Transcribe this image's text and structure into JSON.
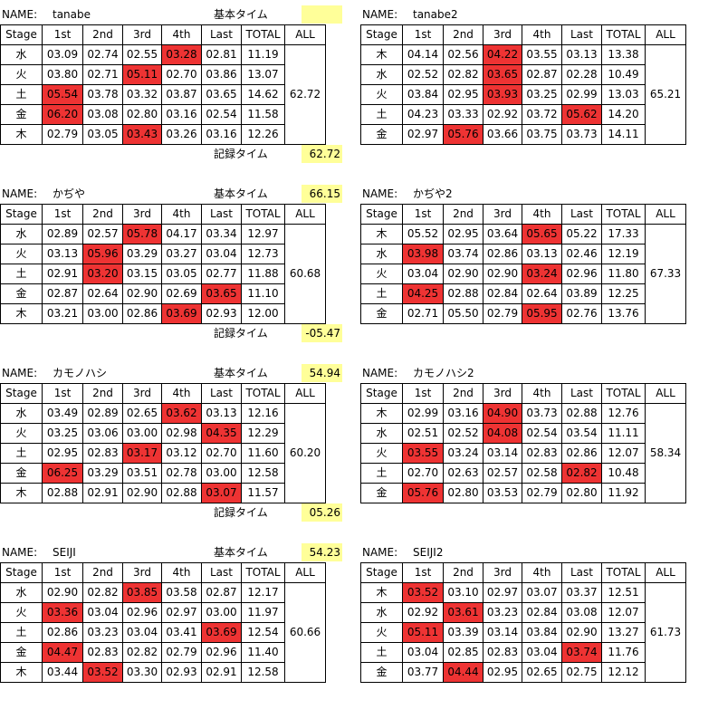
{
  "labels": {
    "name": "NAME:",
    "kihon": "基本タイム",
    "kiroku": "記録タイム",
    "headers": [
      "Stage",
      "1st",
      "2nd",
      "3rd",
      "4th",
      "Last",
      "TOTAL",
      "ALL"
    ]
  },
  "colors": {
    "highlight": "#ee3333",
    "note": "#ffff99"
  },
  "blocks": [
    {
      "name": "tanabe",
      "kihon": "",
      "kiroku": "62.72",
      "all": "62.72",
      "rows": [
        {
          "stage": "水",
          "cells": [
            "03.09",
            "02.74",
            "02.55",
            "03.28",
            "02.81"
          ],
          "total": "11.19",
          "hl": [
            3
          ]
        },
        {
          "stage": "火",
          "cells": [
            "03.80",
            "02.71",
            "05.11",
            "02.70",
            "03.86"
          ],
          "total": "13.07",
          "hl": [
            2
          ]
        },
        {
          "stage": "土",
          "cells": [
            "05.54",
            "03.78",
            "03.32",
            "03.87",
            "03.65"
          ],
          "total": "14.62",
          "hl": [
            0
          ]
        },
        {
          "stage": "金",
          "cells": [
            "06.20",
            "03.08",
            "02.80",
            "03.16",
            "02.54"
          ],
          "total": "11.58",
          "hl": [
            0
          ]
        },
        {
          "stage": "木",
          "cells": [
            "02.79",
            "03.05",
            "03.43",
            "03.26",
            "03.16"
          ],
          "total": "12.26",
          "hl": [
            2
          ]
        }
      ]
    },
    {
      "name": "tanabe2",
      "kihon": null,
      "kiroku": null,
      "all": "65.21",
      "rows": [
        {
          "stage": "木",
          "cells": [
            "04.14",
            "02.56",
            "04.22",
            "03.55",
            "03.13"
          ],
          "total": "13.38",
          "hl": [
            2
          ]
        },
        {
          "stage": "水",
          "cells": [
            "02.52",
            "02.82",
            "03.65",
            "02.87",
            "02.28"
          ],
          "total": "10.49",
          "hl": [
            2
          ]
        },
        {
          "stage": "火",
          "cells": [
            "03.84",
            "02.95",
            "03.93",
            "03.25",
            "02.99"
          ],
          "total": "13.03",
          "hl": [
            2
          ]
        },
        {
          "stage": "土",
          "cells": [
            "04.23",
            "03.33",
            "02.92",
            "03.72",
            "05.62"
          ],
          "total": "14.20",
          "hl": [
            4
          ]
        },
        {
          "stage": "金",
          "cells": [
            "02.97",
            "05.76",
            "03.66",
            "03.75",
            "03.73"
          ],
          "total": "14.11",
          "hl": [
            1
          ]
        }
      ]
    },
    {
      "name": "かぢや",
      "kihon": "66.15",
      "kiroku": "-05.47",
      "all": "60.68",
      "rows": [
        {
          "stage": "水",
          "cells": [
            "02.89",
            "02.57",
            "05.78",
            "04.17",
            "03.34"
          ],
          "total": "12.97",
          "hl": [
            2
          ]
        },
        {
          "stage": "火",
          "cells": [
            "03.13",
            "05.96",
            "03.29",
            "03.27",
            "03.04"
          ],
          "total": "12.73",
          "hl": [
            1
          ]
        },
        {
          "stage": "土",
          "cells": [
            "02.91",
            "03.20",
            "03.15",
            "03.05",
            "02.77"
          ],
          "total": "11.88",
          "hl": [
            1
          ]
        },
        {
          "stage": "金",
          "cells": [
            "02.87",
            "02.64",
            "02.90",
            "02.69",
            "03.65"
          ],
          "total": "11.10",
          "hl": [
            4
          ]
        },
        {
          "stage": "木",
          "cells": [
            "03.21",
            "03.00",
            "02.86",
            "03.69",
            "02.93"
          ],
          "total": "12.00",
          "hl": [
            3
          ]
        }
      ]
    },
    {
      "name": "かぢや2",
      "kihon": null,
      "kiroku": null,
      "all": "67.33",
      "rows": [
        {
          "stage": "木",
          "cells": [
            "05.52",
            "02.95",
            "03.64",
            "05.65",
            "05.22"
          ],
          "total": "17.33",
          "hl": [
            3
          ]
        },
        {
          "stage": "水",
          "cells": [
            "03.98",
            "03.74",
            "02.86",
            "03.13",
            "02.46"
          ],
          "total": "12.19",
          "hl": [
            0
          ]
        },
        {
          "stage": "火",
          "cells": [
            "03.04",
            "02.90",
            "02.90",
            "03.24",
            "02.96"
          ],
          "total": "11.80",
          "hl": [
            3
          ]
        },
        {
          "stage": "土",
          "cells": [
            "04.25",
            "02.88",
            "02.84",
            "02.64",
            "03.89"
          ],
          "total": "12.25",
          "hl": [
            0
          ]
        },
        {
          "stage": "金",
          "cells": [
            "02.71",
            "05.50",
            "02.79",
            "05.95",
            "02.76"
          ],
          "total": "13.76",
          "hl": [
            3
          ]
        }
      ]
    },
    {
      "name": "カモノハシ",
      "kihon": "54.94",
      "kiroku": "05.26",
      "all": "60.20",
      "rows": [
        {
          "stage": "水",
          "cells": [
            "03.49",
            "02.89",
            "02.65",
            "03.62",
            "03.13"
          ],
          "total": "12.16",
          "hl": [
            3
          ]
        },
        {
          "stage": "火",
          "cells": [
            "03.25",
            "03.06",
            "03.00",
            "02.98",
            "04.35"
          ],
          "total": "12.29",
          "hl": [
            4
          ]
        },
        {
          "stage": "土",
          "cells": [
            "02.95",
            "02.83",
            "03.17",
            "03.12",
            "02.70"
          ],
          "total": "11.60",
          "hl": [
            2
          ]
        },
        {
          "stage": "金",
          "cells": [
            "06.25",
            "03.29",
            "03.51",
            "02.78",
            "03.00"
          ],
          "total": "12.58",
          "hl": [
            0
          ]
        },
        {
          "stage": "木",
          "cells": [
            "02.88",
            "02.91",
            "02.90",
            "02.88",
            "03.07"
          ],
          "total": "11.57",
          "hl": [
            4
          ]
        }
      ]
    },
    {
      "name": "カモノハシ2",
      "kihon": null,
      "kiroku": null,
      "all": "58.34",
      "rows": [
        {
          "stage": "木",
          "cells": [
            "02.99",
            "03.16",
            "04.90",
            "03.73",
            "02.88"
          ],
          "total": "12.76",
          "hl": [
            2
          ]
        },
        {
          "stage": "水",
          "cells": [
            "02.51",
            "02.52",
            "04.08",
            "02.54",
            "03.54"
          ],
          "total": "11.11",
          "hl": [
            2
          ]
        },
        {
          "stage": "火",
          "cells": [
            "03.55",
            "03.24",
            "03.14",
            "02.83",
            "02.86"
          ],
          "total": "12.07",
          "hl": [
            0
          ]
        },
        {
          "stage": "土",
          "cells": [
            "02.70",
            "02.63",
            "02.57",
            "02.58",
            "02.82"
          ],
          "total": "10.48",
          "hl": [
            4
          ]
        },
        {
          "stage": "金",
          "cells": [
            "05.76",
            "02.80",
            "03.53",
            "02.79",
            "02.80"
          ],
          "total": "11.92",
          "hl": [
            0
          ]
        }
      ]
    },
    {
      "name": "SEIJI",
      "kihon": "54.23",
      "kiroku": null,
      "all": "60.66",
      "rows": [
        {
          "stage": "水",
          "cells": [
            "02.90",
            "02.82",
            "03.85",
            "03.58",
            "02.87"
          ],
          "total": "12.17",
          "hl": [
            2
          ]
        },
        {
          "stage": "火",
          "cells": [
            "03.36",
            "03.04",
            "02.96",
            "02.97",
            "03.00"
          ],
          "total": "11.97",
          "hl": [
            0
          ]
        },
        {
          "stage": "土",
          "cells": [
            "02.86",
            "03.23",
            "03.04",
            "03.41",
            "03.69"
          ],
          "total": "12.54",
          "hl": [
            4
          ]
        },
        {
          "stage": "金",
          "cells": [
            "04.47",
            "02.83",
            "02.82",
            "02.79",
            "02.96"
          ],
          "total": "11.40",
          "hl": [
            0
          ]
        },
        {
          "stage": "木",
          "cells": [
            "03.44",
            "03.52",
            "03.30",
            "02.93",
            "02.91"
          ],
          "total": "12.58",
          "hl": [
            1
          ]
        }
      ]
    },
    {
      "name": "SEIJI2",
      "kihon": null,
      "kiroku": null,
      "all": "61.73",
      "rows": [
        {
          "stage": "木",
          "cells": [
            "03.52",
            "03.10",
            "02.97",
            "03.07",
            "03.37"
          ],
          "total": "12.51",
          "hl": [
            0
          ]
        },
        {
          "stage": "水",
          "cells": [
            "02.92",
            "03.61",
            "03.23",
            "02.84",
            "03.08"
          ],
          "total": "12.07",
          "hl": [
            1
          ]
        },
        {
          "stage": "火",
          "cells": [
            "05.11",
            "03.39",
            "03.14",
            "03.84",
            "02.90"
          ],
          "total": "13.27",
          "hl": [
            0
          ]
        },
        {
          "stage": "土",
          "cells": [
            "03.04",
            "02.85",
            "02.83",
            "03.04",
            "03.74"
          ],
          "total": "11.76",
          "hl": [
            4
          ]
        },
        {
          "stage": "金",
          "cells": [
            "03.77",
            "04.44",
            "02.95",
            "02.65",
            "02.75"
          ],
          "total": "12.12",
          "hl": [
            1
          ]
        }
      ]
    }
  ]
}
